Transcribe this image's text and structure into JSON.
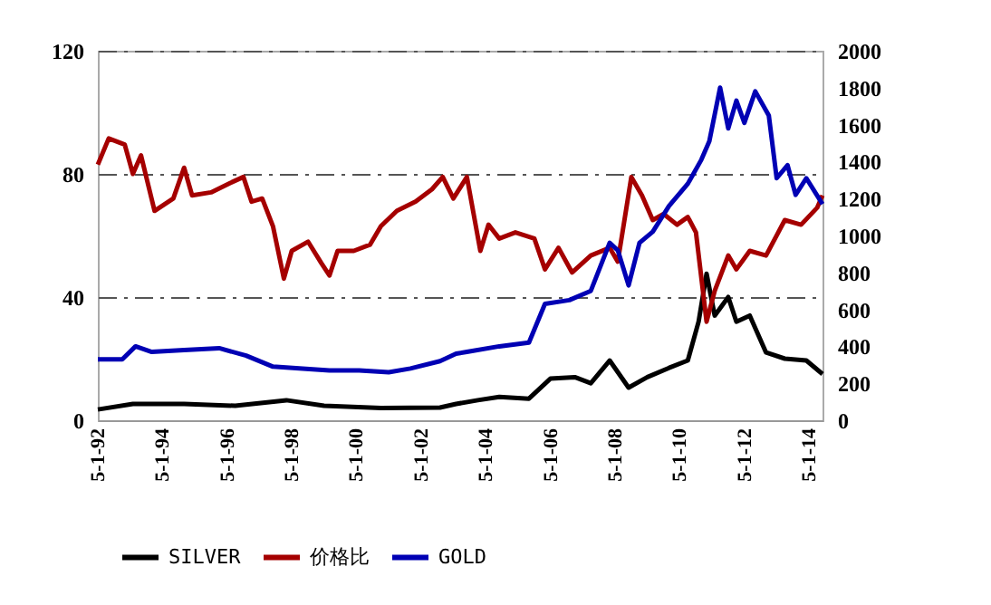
{
  "chart_data": {
    "type": "line",
    "xlim": [
      "1992-05-01",
      "2014-10-01"
    ],
    "xticks": [
      {
        "value": "1992-05-01",
        "label": "5-1-92"
      },
      {
        "value": "1994-05-01",
        "label": "5-1-94"
      },
      {
        "value": "1996-05-01",
        "label": "5-1-96"
      },
      {
        "value": "1998-05-01",
        "label": "5-1-98"
      },
      {
        "value": "2000-05-01",
        "label": "5-1-00"
      },
      {
        "value": "2002-05-01",
        "label": "5-1-02"
      },
      {
        "value": "2004-05-01",
        "label": "5-1-04"
      },
      {
        "value": "2006-05-01",
        "label": "5-1-06"
      },
      {
        "value": "2008-05-01",
        "label": "5-1-08"
      },
      {
        "value": "2010-05-01",
        "label": "5-1-10"
      },
      {
        "value": "2012-05-01",
        "label": "5-1-12"
      },
      {
        "value": "2014-05-01",
        "label": "5-1-14"
      }
    ],
    "ylim": [
      0,
      120
    ],
    "yticks": [
      0,
      40,
      80,
      120
    ],
    "y2lim": [
      0,
      2000
    ],
    "y2ticks": [
      0,
      200,
      400,
      600,
      800,
      1000,
      1200,
      1400,
      1600,
      1800,
      2000
    ],
    "grid": "y",
    "legend": "bottom",
    "marker": "none",
    "line_style": "solid",
    "series": [
      {
        "name": "SILVER",
        "color": "#000000",
        "x": [
          "1992-05",
          "1993-06",
          "1995-01",
          "1996-08",
          "1998-03",
          "1999-05",
          "2001-02",
          "2002-12",
          "2003-06",
          "2004-02",
          "2004-10",
          "2005-09",
          "2006-05",
          "2007-02",
          "2007-08",
          "2008-03",
          "2008-10",
          "2009-05",
          "2010-01",
          "2010-08",
          "2010-12",
          "2011-03",
          "2011-06",
          "2011-11",
          "2012-02",
          "2012-07",
          "2013-01",
          "2013-08",
          "2014-04",
          "2014-10"
        ],
        "values": [
          3.5,
          5.3,
          5.3,
          4.7,
          6.5,
          4.7,
          4,
          4.1,
          5.3,
          6.5,
          7.6,
          7,
          13.5,
          14,
          12,
          19.4,
          10.6,
          14,
          17,
          19.4,
          32,
          47.6,
          34,
          40,
          32,
          34,
          22,
          20,
          19.4,
          15
        ]
      },
      {
        "name": "价格比",
        "color": "#a50000",
        "x": [
          "1992-05",
          "1992-09",
          "1993-03",
          "1993-06",
          "1993-09",
          "1994-02",
          "1994-09",
          "1995-01",
          "1995-04",
          "1995-11",
          "1996-06",
          "1996-11",
          "1997-02",
          "1997-06",
          "1997-10",
          "1998-02",
          "1998-05",
          "1998-11",
          "1999-04",
          "1999-07",
          "1999-10",
          "2000-04",
          "2000-10",
          "2001-02",
          "2001-08",
          "2002-03",
          "2002-09",
          "2003-01",
          "2003-05",
          "2003-10",
          "2004-03",
          "2004-06",
          "2004-10",
          "2005-04",
          "2005-11",
          "2006-03",
          "2006-08",
          "2007-01",
          "2007-08",
          "2008-03",
          "2008-06",
          "2008-11",
          "2009-03",
          "2009-07",
          "2009-11",
          "2010-04",
          "2010-08",
          "2010-11",
          "2011-03",
          "2011-06",
          "2011-11",
          "2012-02",
          "2012-07",
          "2013-01",
          "2013-08",
          "2014-02",
          "2014-08",
          "2014-10"
        ],
        "values": [
          83,
          91.5,
          89.5,
          80,
          86,
          68,
          72,
          82,
          73,
          74,
          77,
          79,
          71,
          72,
          63,
          46,
          55,
          58,
          51,
          47,
          55,
          55,
          57,
          63,
          68,
          71,
          75,
          79,
          72,
          79,
          55,
          63.5,
          59,
          61,
          59,
          49,
          56,
          48,
          53.5,
          56,
          51.5,
          79,
          73,
          65,
          67,
          63.5,
          66,
          61,
          32,
          42,
          53.5,
          49,
          55,
          53.5,
          65,
          63.5,
          69,
          73
        ]
      },
      {
        "name": "GOLD",
        "color": "#0000b4",
        "axis": "y2",
        "x": [
          "1992-05",
          "1993-02",
          "1993-07",
          "1994-01",
          "1995-01",
          "1996-02",
          "1996-12",
          "1997-10",
          "1998-09",
          "1999-07",
          "2000-06",
          "2001-05",
          "2002-01",
          "2002-12",
          "2003-06",
          "2003-10",
          "2004-10",
          "2005-09",
          "2006-03",
          "2006-12",
          "2007-08",
          "2008-03",
          "2008-06",
          "2008-10",
          "2009-02",
          "2009-07",
          "2010-01",
          "2010-08",
          "2011-01",
          "2011-04",
          "2011-08",
          "2011-11",
          "2012-02",
          "2012-05",
          "2012-09",
          "2013-02",
          "2013-05",
          "2013-09",
          "2013-12",
          "2014-04",
          "2014-10"
        ],
        "values": [
          330,
          330,
          400,
          370,
          380,
          390,
          350,
          290,
          280,
          270,
          270,
          260,
          280,
          320,
          360,
          370,
          400,
          420,
          630,
          650,
          700,
          960,
          920,
          730,
          960,
          1020,
          1160,
          1280,
          1410,
          1510,
          1800,
          1580,
          1730,
          1610,
          1780,
          1650,
          1310,
          1380,
          1220,
          1310,
          1170
        ]
      }
    ]
  }
}
